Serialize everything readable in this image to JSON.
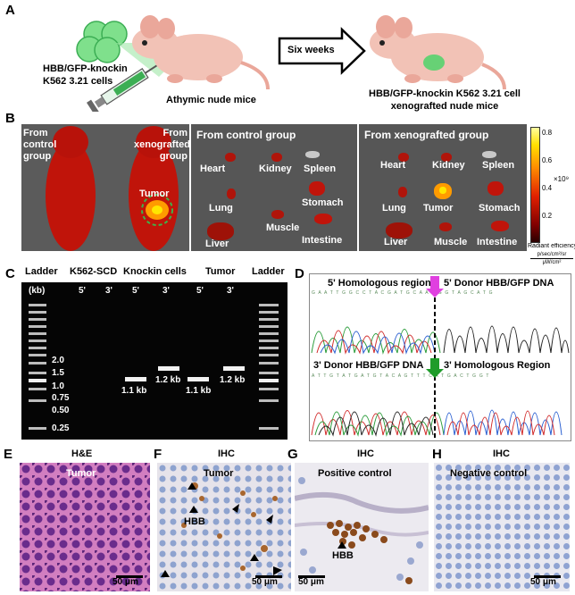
{
  "panel_a": {
    "letter": "A",
    "cells_label_1": "HBB/GFP-knockin",
    "cells_label_2": "K562 3.21 cells",
    "mice_label": "Athymic nude mice",
    "arrow_label": "Six weeks",
    "result_label_1": "HBB/GFP-knockin K562 3.21 cell",
    "result_label_2": "xenografted nude mice"
  },
  "panel_b": {
    "letter": "B",
    "from_control_1": "From",
    "from_control_2": "control",
    "from_control_3": "group",
    "from_xeno_1": "From",
    "from_xeno_2": "xenografted",
    "from_xeno_3": "group",
    "tumor": "Tumor",
    "control_title": "From control group",
    "xeno_title": "From xenografted group",
    "organs_control": [
      "Heart",
      "Kidney",
      "Spleen",
      "Lung",
      "Stomach",
      "Muscle",
      "Liver",
      "Intestine"
    ],
    "organs_xeno": [
      "Heart",
      "Kidney",
      "Spleen",
      "Lung",
      "Tumor",
      "Stomach",
      "Liver",
      "Muscle",
      "Intestine"
    ],
    "colorbar": {
      "ticks": [
        "0.8",
        "0.6",
        "0.4",
        "0.2"
      ],
      "exponent": "×10⁹",
      "title": "Radiant efficiency",
      "units_num": "p/sec/cm²/sr",
      "units_den": "μW/cm²"
    }
  },
  "panel_c": {
    "letter": "C",
    "headers": [
      "Ladder",
      "K562-SCD",
      "Knockin cells",
      "Tumor",
      "Ladder"
    ],
    "sub_headers": [
      "5'",
      "3'",
      "5'",
      "3'",
      "5'",
      "3'"
    ],
    "kb": "(kb)",
    "ladder_marks": [
      "2.0",
      "1.5",
      "1.0",
      "0.75",
      "0.50",
      "0.25"
    ],
    "band_labels": [
      "1.1 kb",
      "1.2 kb",
      "1.1 kb",
      "1.2 kb"
    ]
  },
  "panel_d": {
    "letter": "D",
    "top_left": "5' Homologous region",
    "top_right": "5' Donor HBB/GFP DNA",
    "bottom_left": "3' Donor HBB/GFP DNA",
    "bottom_right": "3' Homologous Region",
    "seq_top": "G A A T T G G C C T A C G A T G C A A G G G T A G C A T G",
    "seq_bottom": "A T T G T A T G A T G T A C A G T T T C A T G A C T G G T"
  },
  "panel_e": {
    "letter": "E",
    "title": "H&E",
    "tag": "Tumor",
    "scale": "50 μm"
  },
  "panel_f": {
    "letter": "F",
    "title": "IHC",
    "tag": "Tumor",
    "marker": "HBB",
    "scale": "50 μm"
  },
  "panel_g": {
    "letter": "G",
    "title": "IHC",
    "tag": "Positive control",
    "marker": "HBB",
    "scale": "50 μm"
  },
  "panel_h": {
    "letter": "H",
    "title": "IHC",
    "tag": "Negative control",
    "scale": "50 μm"
  },
  "colors": {
    "tissue_red": "#c0140a",
    "gfp_green": "#4fd36a",
    "gel_band": "#f2f2f2",
    "he_pink": "#c45aa8",
    "ihc_blue": "#9fb3d9",
    "hbb_brown": "#8a4a1c"
  }
}
